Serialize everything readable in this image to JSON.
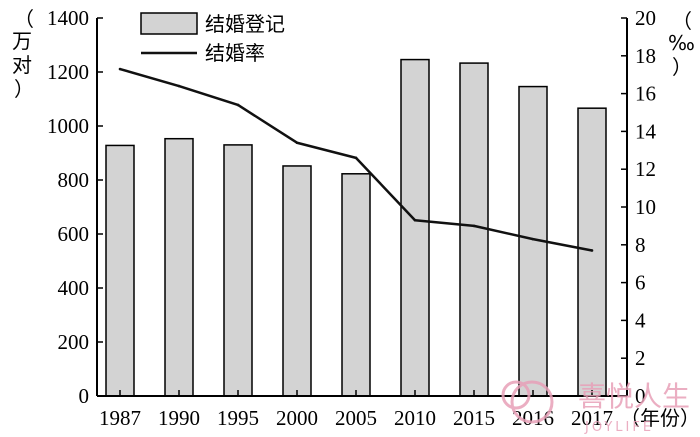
{
  "chart_data": {
    "type": "bar",
    "categories": [
      "1987",
      "1990",
      "1995",
      "2000",
      "2005",
      "2010",
      "2015",
      "2016",
      "2017"
    ],
    "x_unit": "（年份）",
    "series": [
      {
        "name": "结婚登记",
        "type": "bar",
        "axis": "left",
        "values": [
          928,
          953,
          930,
          852,
          823,
          1246,
          1233,
          1146,
          1066
        ],
        "color": "#d3d3d3"
      },
      {
        "name": "结婚率",
        "type": "line",
        "axis": "right",
        "values": [
          17.3,
          16.4,
          15.4,
          13.4,
          12.6,
          9.3,
          9.0,
          8.3,
          7.7
        ],
        "color": "#111111"
      }
    ],
    "left_axis": {
      "unit_chars": [
        "（",
        "万",
        "对",
        "）"
      ],
      "ylim": [
        0,
        1400
      ],
      "ticks": [
        "0",
        "200",
        "400",
        "600",
        "800",
        "1000",
        "1200",
        "1400"
      ]
    },
    "right_axis": {
      "unit_chars": [
        "（",
        "‰",
        "）"
      ],
      "ylim": [
        0,
        20
      ],
      "ticks": [
        "0",
        "2",
        "4",
        "6",
        "8",
        "10",
        "12",
        "14",
        "16",
        "18",
        "20"
      ]
    },
    "legend": {
      "position": "top-left",
      "items": [
        {
          "label": "结婚登记",
          "kind": "box"
        },
        {
          "label": "结婚率",
          "kind": "line"
        }
      ]
    },
    "grid": false
  },
  "watermark": {
    "text": "喜悦人生",
    "subtext": "JOYLIFE",
    "color": "#e8a0b8"
  }
}
